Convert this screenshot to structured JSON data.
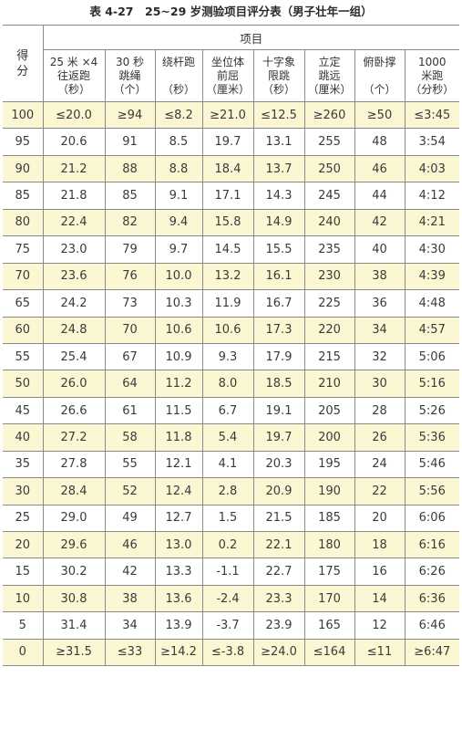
{
  "title": "表 4-27　25~29 岁测验项目评分表（男子壮年一组）",
  "header": {
    "score": [
      "得",
      "分"
    ],
    "items_group": "项目",
    "columns": [
      [
        "25 米 ×4",
        "往返跑",
        "（秒）"
      ],
      [
        "30 秒",
        "跳绳",
        "（个）"
      ],
      [
        "绕杆跑",
        "",
        "（秒）"
      ],
      [
        "坐位体",
        "前屈",
        "（厘米）"
      ],
      [
        "十字象",
        "限跳",
        "（秒）"
      ],
      [
        "立定",
        "跳远",
        "（厘米）"
      ],
      [
        "俯卧撑",
        "",
        "（个）"
      ],
      [
        "1000",
        "米跑",
        "（分秒）"
      ]
    ]
  },
  "rows": [
    [
      "100",
      "≤20.0",
      "≥94",
      "≤8.2",
      "≥21.0",
      "≤12.5",
      "≥260",
      "≥50",
      "≤3:45"
    ],
    [
      "95",
      "20.6",
      "91",
      "8.5",
      "19.7",
      "13.1",
      "255",
      "48",
      "3:54"
    ],
    [
      "90",
      "21.2",
      "88",
      "8.8",
      "18.4",
      "13.7",
      "250",
      "46",
      "4:03"
    ],
    [
      "85",
      "21.8",
      "85",
      "9.1",
      "17.1",
      "14.3",
      "245",
      "44",
      "4:12"
    ],
    [
      "80",
      "22.4",
      "82",
      "9.4",
      "15.8",
      "14.9",
      "240",
      "42",
      "4:21"
    ],
    [
      "75",
      "23.0",
      "79",
      "9.7",
      "14.5",
      "15.5",
      "235",
      "40",
      "4:30"
    ],
    [
      "70",
      "23.6",
      "76",
      "10.0",
      "13.2",
      "16.1",
      "230",
      "38",
      "4:39"
    ],
    [
      "65",
      "24.2",
      "73",
      "10.3",
      "11.9",
      "16.7",
      "225",
      "36",
      "4:48"
    ],
    [
      "60",
      "24.8",
      "70",
      "10.6",
      "10.6",
      "17.3",
      "220",
      "34",
      "4:57"
    ],
    [
      "55",
      "25.4",
      "67",
      "10.9",
      "9.3",
      "17.9",
      "215",
      "32",
      "5:06"
    ],
    [
      "50",
      "26.0",
      "64",
      "11.2",
      "8.0",
      "18.5",
      "210",
      "30",
      "5:16"
    ],
    [
      "45",
      "26.6",
      "61",
      "11.5",
      "6.7",
      "19.1",
      "205",
      "28",
      "5:26"
    ],
    [
      "40",
      "27.2",
      "58",
      "11.8",
      "5.4",
      "19.7",
      "200",
      "26",
      "5:36"
    ],
    [
      "35",
      "27.8",
      "55",
      "12.1",
      "4.1",
      "20.3",
      "195",
      "24",
      "5:46"
    ],
    [
      "30",
      "28.4",
      "52",
      "12.4",
      "2.8",
      "20.9",
      "190",
      "22",
      "5:56"
    ],
    [
      "25",
      "29.0",
      "49",
      "12.7",
      "1.5",
      "21.5",
      "185",
      "20",
      "6:06"
    ],
    [
      "20",
      "29.6",
      "46",
      "13.0",
      "0.2",
      "22.1",
      "180",
      "18",
      "6:16"
    ],
    [
      "15",
      "30.2",
      "42",
      "13.3",
      "-1.1",
      "22.7",
      "175",
      "16",
      "6:26"
    ],
    [
      "10",
      "30.8",
      "38",
      "13.6",
      "-2.4",
      "23.3",
      "170",
      "14",
      "6:36"
    ],
    [
      "5",
      "31.4",
      "34",
      "13.9",
      "-3.7",
      "23.9",
      "165",
      "12",
      "6:46"
    ],
    [
      "0",
      "≥31.5",
      "≤33",
      "≥14.2",
      "≤-3.8",
      "≥24.0",
      "≤164",
      "≤11",
      "≥6:47"
    ]
  ]
}
